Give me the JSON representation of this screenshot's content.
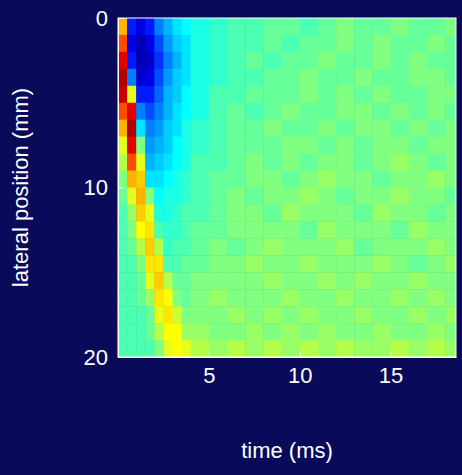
{
  "chart_data": {
    "type": "heatmap",
    "xlabel": "time (ms)",
    "ylabel": "lateral position (mm)",
    "xlim": [
      0,
      18.6
    ],
    "ylim": [
      0,
      20
    ],
    "xticks": [
      5,
      10,
      15
    ],
    "yticks": [
      0,
      10,
      20
    ],
    "x_bins": [
      0,
      0.5,
      1,
      1.5,
      2,
      2.5,
      3,
      3.5,
      4,
      5,
      6,
      7,
      8,
      9,
      10,
      11,
      12,
      13,
      14,
      15,
      16,
      17,
      18,
      19
    ],
    "y_bins": [
      0,
      1,
      2,
      3,
      4,
      5,
      6,
      7,
      8,
      9,
      10,
      11,
      12,
      13,
      14,
      15,
      16,
      17,
      18,
      19,
      20
    ],
    "zlim": [
      -1,
      1
    ],
    "cells": [
      [
        0.4,
        -0.7,
        -0.8,
        -0.7,
        -0.5,
        -0.4,
        -0.3,
        -0.25,
        -0.2,
        -0.15,
        -0.1,
        -0.1,
        -0.05,
        -0.05,
        -0.1,
        -0.05,
        0,
        -0.05,
        -0.05,
        0,
        -0.05,
        -0.05,
        0
      ],
      [
        0.6,
        -0.8,
        -0.9,
        -0.8,
        -0.6,
        -0.45,
        -0.35,
        -0.3,
        -0.2,
        -0.15,
        -0.1,
        -0.1,
        -0.05,
        -0.1,
        -0.05,
        -0.05,
        0,
        -0.05,
        0,
        -0.05,
        -0.05,
        0,
        -0.05
      ],
      [
        0.8,
        -0.7,
        -0.9,
        -0.85,
        -0.65,
        -0.5,
        -0.4,
        -0.3,
        -0.2,
        -0.15,
        -0.1,
        -0.05,
        -0.1,
        -0.05,
        -0.05,
        0,
        -0.05,
        -0.05,
        0,
        -0.05,
        0,
        -0.05,
        -0.05
      ],
      [
        0.9,
        -0.5,
        -0.85,
        -0.8,
        -0.6,
        -0.45,
        -0.35,
        -0.3,
        -0.2,
        -0.15,
        -0.1,
        -0.1,
        -0.05,
        -0.05,
        0,
        -0.05,
        -0.05,
        0,
        -0.05,
        -0.05,
        0,
        0,
        -0.05
      ],
      [
        0.85,
        0.2,
        -0.7,
        -0.7,
        -0.55,
        -0.4,
        -0.35,
        -0.25,
        -0.2,
        -0.1,
        -0.1,
        -0.05,
        -0.05,
        -0.05,
        0,
        -0.05,
        0,
        -0.05,
        0,
        -0.05,
        -0.05,
        0,
        0
      ],
      [
        0.6,
        0.8,
        -0.5,
        -0.6,
        -0.5,
        -0.4,
        -0.3,
        -0.25,
        -0.2,
        -0.1,
        -0.05,
        -0.1,
        -0.05,
        0,
        -0.05,
        -0.05,
        0,
        0,
        -0.05,
        0,
        -0.05,
        0,
        -0.05
      ],
      [
        0.4,
        0.9,
        -0.3,
        -0.5,
        -0.45,
        -0.35,
        -0.3,
        -0.2,
        -0.15,
        -0.1,
        -0.05,
        -0.05,
        0,
        -0.05,
        -0.05,
        0,
        -0.05,
        0,
        0,
        -0.05,
        0,
        -0.05,
        0
      ],
      [
        0.2,
        0.8,
        0.0,
        -0.45,
        -0.4,
        -0.35,
        -0.25,
        -0.2,
        -0.15,
        -0.1,
        -0.05,
        -0.05,
        -0.05,
        0,
        0,
        -0.05,
        0,
        -0.05,
        0,
        0,
        -0.05,
        0,
        0
      ],
      [
        0.1,
        0.6,
        0.2,
        -0.4,
        -0.35,
        -0.3,
        -0.25,
        -0.2,
        -0.1,
        -0.1,
        -0.05,
        0,
        -0.05,
        0,
        -0.05,
        0,
        0,
        -0.05,
        0,
        0.05,
        0,
        -0.05,
        0
      ],
      [
        0.0,
        0.4,
        0.35,
        -0.3,
        -0.3,
        -0.25,
        -0.2,
        -0.15,
        -0.1,
        -0.05,
        -0.05,
        0,
        0,
        -0.05,
        0,
        0.05,
        0,
        0,
        -0.05,
        0,
        0,
        0.05,
        0
      ],
      [
        -0.05,
        0.2,
        0.4,
        0.0,
        -0.25,
        -0.2,
        -0.2,
        -0.15,
        -0.1,
        -0.05,
        0,
        -0.05,
        0,
        0,
        0.05,
        0,
        -0.05,
        0,
        0,
        0.05,
        0,
        0,
        -0.05
      ],
      [
        -0.1,
        0.05,
        0.35,
        0.2,
        -0.2,
        -0.2,
        -0.15,
        -0.1,
        -0.1,
        -0.05,
        0,
        0,
        -0.05,
        0.05,
        0,
        0,
        0,
        -0.05,
        0.05,
        0,
        0,
        -0.05,
        0
      ],
      [
        -0.1,
        0.0,
        0.25,
        0.3,
        -0.1,
        -0.15,
        -0.15,
        -0.1,
        -0.05,
        -0.05,
        0,
        0,
        0,
        0,
        -0.05,
        0.05,
        0,
        0,
        0,
        -0.05,
        0.05,
        0,
        0
      ],
      [
        -0.1,
        -0.05,
        0.1,
        0.35,
        0.1,
        -0.15,
        -0.1,
        -0.1,
        -0.05,
        0,
        -0.05,
        0,
        0.05,
        0,
        0,
        0,
        0.05,
        -0.05,
        0,
        0,
        0,
        0.05,
        0
      ],
      [
        -0.1,
        -0.1,
        0.0,
        0.3,
        0.3,
        -0.1,
        -0.1,
        -0.05,
        -0.05,
        0,
        0,
        0.05,
        0,
        0,
        0.05,
        0,
        0,
        0,
        0.05,
        0,
        -0.05,
        0,
        0.05
      ],
      [
        -0.1,
        -0.1,
        -0.05,
        0.2,
        0.35,
        0.1,
        -0.05,
        -0.05,
        0,
        0,
        0,
        0,
        0.05,
        0,
        0,
        0.05,
        0,
        0.05,
        0,
        0,
        0.05,
        0,
        0
      ],
      [
        -0.1,
        -0.1,
        -0.05,
        0.05,
        0.3,
        0.25,
        0.0,
        -0.05,
        0,
        0.05,
        0,
        0,
        0,
        0.05,
        0,
        0,
        0.05,
        0,
        0,
        0.05,
        0,
        0.05,
        0
      ],
      [
        -0.1,
        -0.1,
        -0.1,
        -0.05,
        0.2,
        0.3,
        0.15,
        0,
        0,
        0,
        0.05,
        0,
        0.05,
        0,
        0.05,
        0,
        0,
        0.05,
        0,
        0,
        0.05,
        0,
        0.05
      ],
      [
        -0.1,
        -0.1,
        -0.1,
        -0.05,
        0.1,
        0.25,
        0.25,
        0.05,
        0.05,
        0,
        0,
        0.05,
        0,
        0.05,
        0,
        0.05,
        0,
        0,
        0.05,
        0,
        0,
        0.05,
        0
      ],
      [
        -0.1,
        -0.1,
        -0.1,
        -0.1,
        0.0,
        0.2,
        0.25,
        0.2,
        0.1,
        0.05,
        0.1,
        0.05,
        0.1,
        0.05,
        0.1,
        0.05,
        0.1,
        0.05,
        0.05,
        0.1,
        0.05,
        0.1,
        0.05
      ]
    ]
  }
}
